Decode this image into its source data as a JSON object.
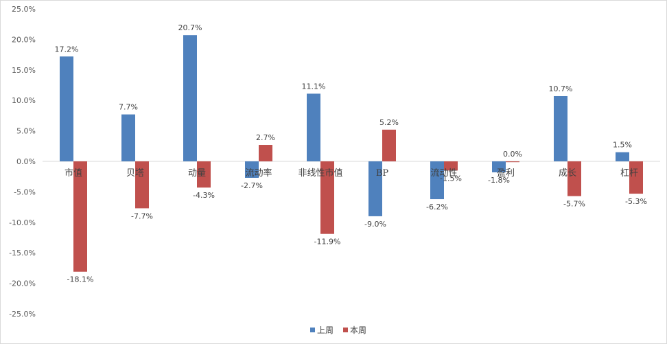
{
  "chart_data": {
    "type": "bar",
    "categories": [
      "市值",
      "贝塔",
      "动量",
      "流动率",
      "非线性市值",
      "BP",
      "流动性",
      "盈利",
      "成长",
      "杠杆"
    ],
    "series": [
      {
        "name": "上周",
        "color": "#4f81bd",
        "values": [
          17.2,
          7.7,
          20.7,
          -2.7,
          11.1,
          -9.0,
          -6.2,
          -1.8,
          10.7,
          1.5
        ],
        "labels": [
          "17.2%",
          "7.7%",
          "20.7%",
          "-2.7%",
          "11.1%",
          "-9.0%",
          "-6.2%",
          "-1.8%",
          "10.7%",
          "1.5%"
        ]
      },
      {
        "name": "本周",
        "color": "#c0504d",
        "values": [
          -18.1,
          -7.7,
          -4.3,
          2.7,
          -11.9,
          5.2,
          -1.5,
          0.0,
          -5.7,
          -5.3
        ],
        "labels": [
          "-18.1%",
          "-7.7%",
          "-4.3%",
          "2.7%",
          "-11.9%",
          "5.2%",
          "-1.5%",
          "0.0%",
          "-5.7%",
          "-5.3%"
        ]
      }
    ],
    "ylim": [
      -25,
      25
    ],
    "yticks": [
      25,
      20,
      15,
      10,
      5,
      0,
      -5,
      -10,
      -15,
      -20,
      -25
    ],
    "ytick_labels": [
      "25.0%",
      "20.0%",
      "15.0%",
      "10.0%",
      "5.0%",
      "0.0%",
      "-5.0%",
      "-10.0%",
      "-15.0%",
      "-20.0%",
      "-25.0%"
    ],
    "legend_position": "bottom",
    "grid": false
  }
}
